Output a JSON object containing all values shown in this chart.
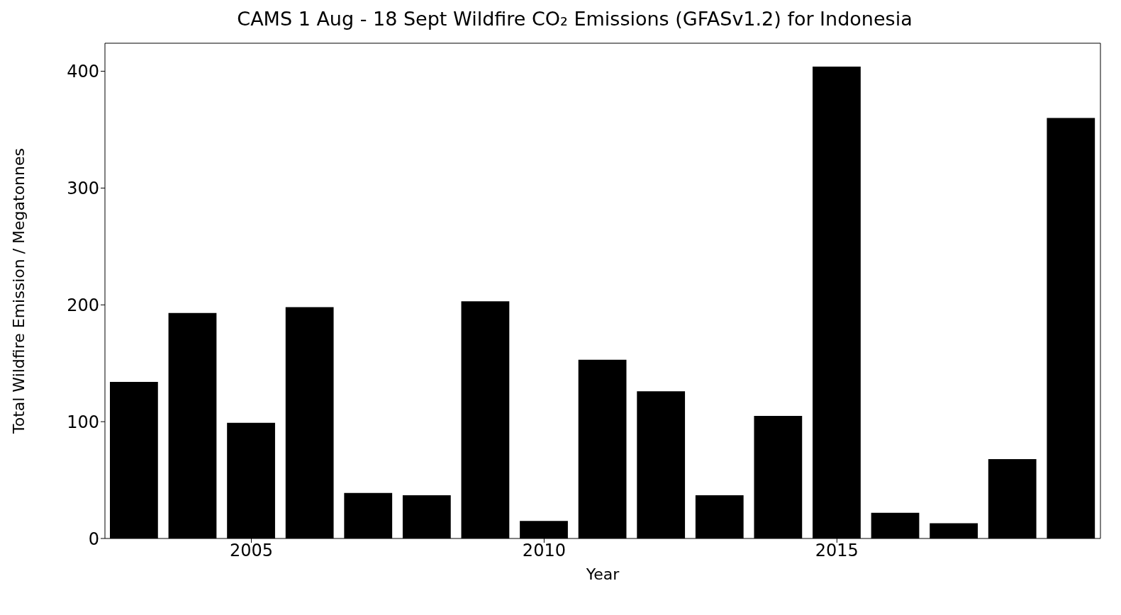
{
  "chart_data": {
    "type": "bar",
    "title": "CAMS 1 Aug - 18 Sept Wildfire CO₂ Emissions (GFASv1.2) for Indonesia",
    "xlabel": "Year",
    "ylabel": "Total Wildfire Emission / Megatonnes",
    "x": [
      2003,
      2004,
      2005,
      2006,
      2007,
      2008,
      2009,
      2010,
      2011,
      2012,
      2013,
      2014,
      2015,
      2016,
      2017,
      2018,
      2019
    ],
    "values": [
      134,
      193,
      99,
      198,
      39,
      37,
      203,
      15,
      153,
      126,
      37,
      105,
      404,
      22,
      13,
      68,
      360
    ],
    "color": "#000000",
    "xlim": [
      2002.5,
      2019.5
    ],
    "xticks": [
      2005,
      2010,
      2015
    ],
    "ylim": [
      0,
      424
    ],
    "yticks": [
      0,
      100,
      200,
      300,
      400
    ]
  }
}
